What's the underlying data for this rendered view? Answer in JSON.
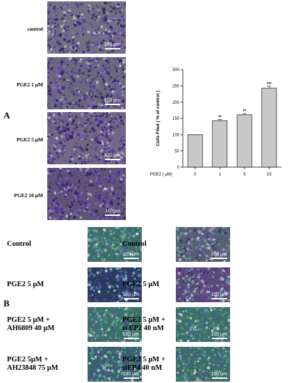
{
  "panel_a": {
    "letter": "A",
    "images": [
      {
        "label": "control",
        "scale": "100 μm"
      },
      {
        "label": "PGE2 1 μM",
        "scale": "100 μm"
      },
      {
        "label": "PGE2 5 μM",
        "scale": "100 μm"
      },
      {
        "label": "PGE2 10 μM",
        "scale": "100μm"
      }
    ]
  },
  "chart_data": {
    "type": "bar",
    "categories": [
      "0",
      "1",
      "5",
      "10"
    ],
    "values": [
      100,
      143,
      161,
      243
    ],
    "errors": [
      0,
      4,
      4,
      6
    ],
    "significance": [
      "",
      "**",
      "**",
      "***"
    ],
    "ylabel": "Cells Filed ( % of control )",
    "xlabel_prefix": "PGE2 ( μM)",
    "ylim": [
      0,
      300
    ],
    "yticks": [
      "0",
      "50",
      "100",
      "150",
      "200",
      "250",
      "300"
    ],
    "bar_color": "#c8c8c8"
  },
  "panel_b": {
    "letter": "B",
    "left": [
      {
        "label": "Control",
        "scale": "100 μm"
      },
      {
        "label": "PGE2 5 μM",
        "scale": "100 μm"
      },
      {
        "label": "PGE2 5 μM  +\nAH6809 40 μM",
        "scale": "100 μm"
      },
      {
        "label": "PGE2 5μM +\nAH23848  75 μM",
        "scale": "100 μm"
      }
    ],
    "right": [
      {
        "label": "Control",
        "scale": "100 μm"
      },
      {
        "label": "PGE2 5 μM",
        "scale": "100 μm"
      },
      {
        "label": "PGE2 5 μM +\nsi EP2 40 nM",
        "scale": "100 μm"
      },
      {
        "label": "PGE2 5 μM +\nsiEP4 40 nM",
        "scale": "100 μm"
      }
    ]
  }
}
